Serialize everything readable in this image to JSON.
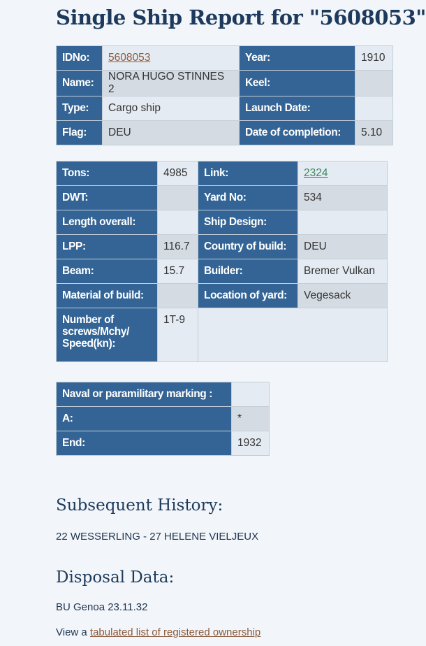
{
  "title": "Single Ship Report for \"5608053\"",
  "table1": {
    "rows": [
      [
        "IDNo:",
        "5608053",
        "Year:",
        "1910"
      ],
      [
        "Name:",
        "NORA HUGO STINNES 2",
        "Keel:",
        null
      ],
      [
        "Type:",
        "Cargo ship",
        "Launch Date:",
        null
      ],
      [
        "Flag:",
        "DEU",
        "Date of completion:",
        "5.10"
      ]
    ]
  },
  "table2": {
    "rows": [
      [
        "Tons:",
        "4985",
        "Link:",
        "2324"
      ],
      [
        "DWT:",
        null,
        "Yard No:",
        "534"
      ],
      [
        "Length overall:",
        null,
        "Ship Design:",
        null
      ],
      [
        "LPP:",
        "116.7",
        "Country of build:",
        "DEU"
      ],
      [
        "Beam:",
        "15.7",
        "Builder:",
        "Bremer Vulkan"
      ],
      [
        "Material of build:",
        null,
        "Location of yard:",
        "Vegesack"
      ],
      [
        "Number of screws/Mchy/ Speed(kn):",
        "1T-9"
      ]
    ]
  },
  "table3": {
    "rows": [
      [
        "Naval or paramilitary marking :",
        null
      ],
      [
        "A:",
        "*"
      ],
      [
        "End:",
        "1932"
      ]
    ]
  },
  "history": {
    "heading": "Subsequent History:",
    "text": "22 WESSERLING - 27 HELENE VIELJEUX"
  },
  "disposal": {
    "heading": "Disposal Data:",
    "text": "BU Genoa 23.11.32"
  },
  "footer": {
    "prefix": "View a ",
    "link": "tabulated list of registered ownership"
  }
}
